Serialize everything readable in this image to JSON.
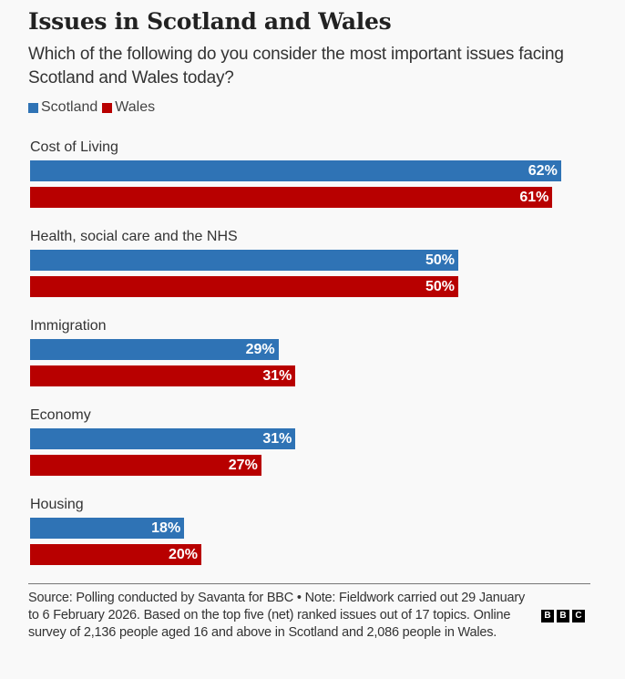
{
  "colors": {
    "Scotland": "#2f73b5",
    "Wales": "#b80000"
  },
  "chart_data": {
    "type": "bar",
    "orientation": "horizontal",
    "title": "Issues in Scotland and Wales",
    "subtitle": "Which of the following do you consider the most important issues facing Scotland and Wales today?",
    "categories": [
      "Cost of Living",
      "Health, social care and the NHS",
      "Immigration",
      "Economy",
      "Housing"
    ],
    "series": [
      {
        "name": "Scotland",
        "values": [
          62,
          50,
          29,
          31,
          18
        ],
        "labels": [
          "62%",
          "50%",
          "29%",
          "31%",
          "18%"
        ]
      },
      {
        "name": "Wales",
        "values": [
          61,
          50,
          31,
          27,
          20
        ],
        "labels": [
          "61%",
          "50%",
          "31%",
          "27%",
          "20%"
        ]
      }
    ],
    "unit": "%",
    "xlim": [
      0,
      62
    ],
    "grid": false,
    "legend_placement": "top-left"
  },
  "footer": {
    "source": "Source: Polling conducted by Savanta for BBC • Note: Fieldwork carried out 29 January to 6 February 2026. Based on the top five (net) ranked issues out of 17 topics. Online survey of 2,136 people aged 16 and above in Scotland and 2,086 people in Wales.",
    "logo": [
      "B",
      "B",
      "C"
    ]
  }
}
